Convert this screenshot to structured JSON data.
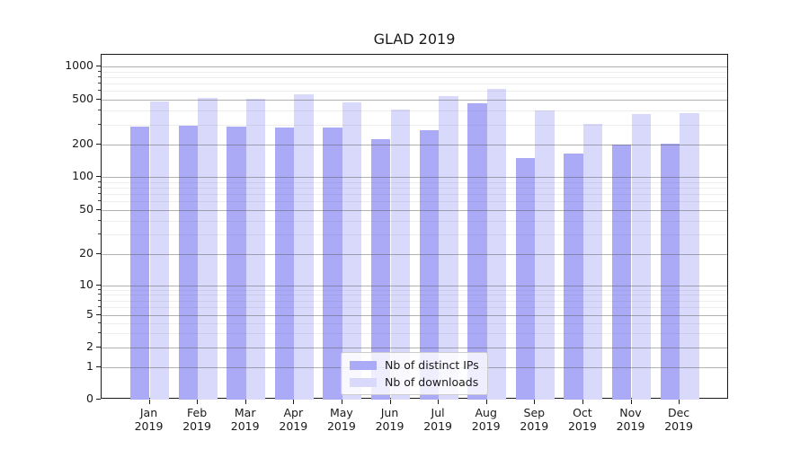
{
  "chart_data": {
    "type": "bar",
    "title": "GLAD 2019",
    "categories": [
      "Jan",
      "Feb",
      "Mar",
      "Apr",
      "May",
      "Jun",
      "Jul",
      "Aug",
      "Sep",
      "Oct",
      "Nov",
      "Dec"
    ],
    "category_year": "2019",
    "series": [
      {
        "name": "Nb of distinct IPs",
        "color": "#aaaaf7",
        "values": [
          285,
          293,
          288,
          283,
          284,
          223,
          267,
          461,
          149,
          164,
          200,
          203
        ]
      },
      {
        "name": "Nb of downloads",
        "color": "#d9d9fb",
        "values": [
          484,
          522,
          509,
          557,
          470,
          406,
          536,
          624,
          400,
          306,
          372,
          376
        ]
      }
    ],
    "yscale": "symlog",
    "ylim": [
      0,
      1000
    ],
    "yticks": [
      0,
      1,
      2,
      5,
      10,
      20,
      50,
      100,
      200,
      500,
      1000
    ],
    "yminor": [
      3,
      4,
      6,
      7,
      8,
      9,
      30,
      40,
      60,
      70,
      80,
      90,
      300,
      400,
      600,
      700,
      800,
      900
    ],
    "xlabel": "",
    "ylabel": "",
    "grid": "horizontal major+minor, drawn above bars",
    "legend_position": "lower center"
  }
}
